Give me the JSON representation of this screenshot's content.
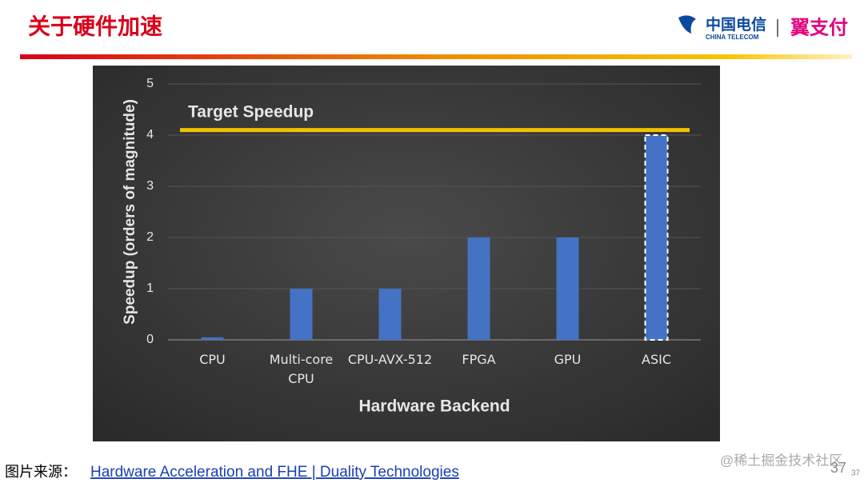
{
  "header": {
    "title": "关于硬件加速",
    "logo_cn": "中国电信",
    "logo_en": "CHINA TELECOM",
    "logo_pay": "翼支付"
  },
  "chart_data": {
    "type": "bar",
    "categories": [
      "CPU",
      "Multi-core CPU",
      "CPU-AVX-512",
      "FPGA",
      "GPU",
      "ASIC"
    ],
    "values": [
      0.05,
      1,
      1,
      2,
      2,
      4
    ],
    "color": "#4472c4",
    "ylim": [
      0,
      5
    ],
    "yticks": [
      0,
      1,
      2,
      3,
      4,
      5
    ],
    "grid": true,
    "y_label": "Speedup (orders of magnitude)",
    "x_label": "Hardware Backend",
    "target": {
      "label": "Target Speedup",
      "value": 4.1,
      "color": "#f2c200"
    }
  },
  "footer": {
    "source_label": "图片来源：",
    "source_link": "Hardware Acceleration and FHE | Duality Technologies",
    "page_number": "37",
    "watermark": "@稀土掘金技术社区",
    "page_number_small": "37"
  }
}
